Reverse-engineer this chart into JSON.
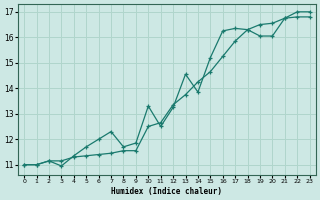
{
  "title": "",
  "xlabel": "Humidex (Indice chaleur)",
  "ylabel": "",
  "background_color": "#cde8e4",
  "grid_color": "#b0d5cc",
  "line_color": "#1a7a6e",
  "xlim": [
    -0.5,
    23.5
  ],
  "ylim": [
    10.6,
    17.3
  ],
  "xticks": [
    0,
    1,
    2,
    3,
    4,
    5,
    6,
    7,
    8,
    9,
    10,
    11,
    12,
    13,
    14,
    15,
    16,
    17,
    18,
    19,
    20,
    21,
    22,
    23
  ],
  "yticks": [
    11,
    12,
    13,
    14,
    15,
    16,
    17
  ],
  "line1_x": [
    0,
    1,
    2,
    3,
    4,
    5,
    6,
    7,
    8,
    9,
    10,
    11,
    12,
    13,
    14,
    15,
    16,
    17,
    18,
    19,
    20,
    21,
    22,
    23
  ],
  "line1_y": [
    11.0,
    11.0,
    11.15,
    11.15,
    11.3,
    11.35,
    11.4,
    11.45,
    11.55,
    11.55,
    12.5,
    12.65,
    13.35,
    13.75,
    14.25,
    14.65,
    15.25,
    15.85,
    16.3,
    16.5,
    16.55,
    16.75,
    17.0,
    17.0
  ],
  "line2_x": [
    0,
    1,
    2,
    3,
    4,
    5,
    6,
    7,
    8,
    9,
    10,
    11,
    12,
    13,
    14,
    15,
    16,
    17,
    18,
    19,
    20,
    21,
    22,
    23
  ],
  "line2_y": [
    11.0,
    11.0,
    11.15,
    10.95,
    11.35,
    11.7,
    12.0,
    12.3,
    11.7,
    11.85,
    13.3,
    12.5,
    13.25,
    14.55,
    13.85,
    15.2,
    16.25,
    16.35,
    16.3,
    16.05,
    16.05,
    16.75,
    16.8,
    16.8
  ]
}
